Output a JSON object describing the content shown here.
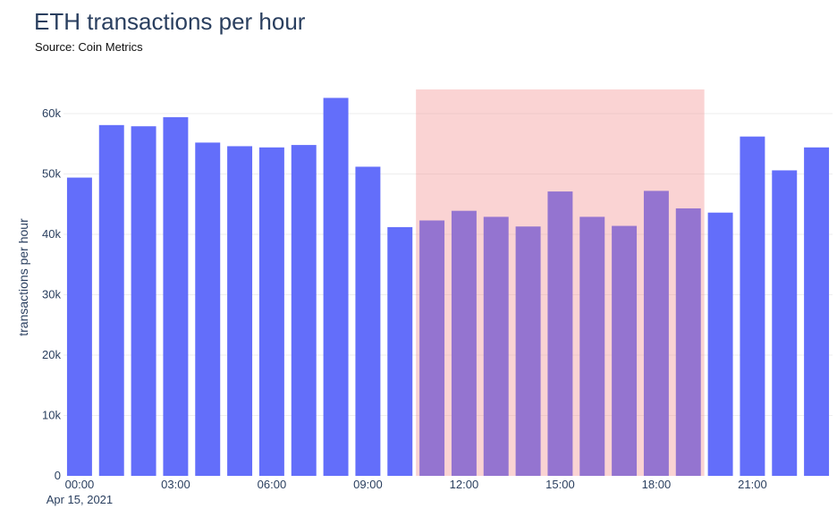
{
  "title": "ETH transactions per hour",
  "subtitle": "Source: Coin Metrics",
  "colors": {
    "bar": "#636efa",
    "highlight": "#f08080",
    "grid": "#eeeeee",
    "text": "#2a3f5f"
  },
  "chart_data": {
    "type": "bar",
    "title": "ETH transactions per hour",
    "subtitle": "Source: Coin Metrics",
    "xlabel": "",
    "ylabel": "transactions per hour",
    "ylim": [
      0,
      64000
    ],
    "grid": true,
    "categories": [
      "00:00",
      "01:00",
      "02:00",
      "03:00",
      "04:00",
      "05:00",
      "06:00",
      "07:00",
      "08:00",
      "09:00",
      "10:00",
      "11:00",
      "12:00",
      "13:00",
      "14:00",
      "15:00",
      "16:00",
      "17:00",
      "18:00",
      "19:00",
      "20:00",
      "21:00",
      "22:00",
      "23:00"
    ],
    "values": [
      49400,
      58100,
      57900,
      59400,
      55200,
      54600,
      54400,
      54800,
      62600,
      51200,
      41200,
      42300,
      43900,
      42900,
      41300,
      47100,
      42900,
      41400,
      47200,
      44300,
      43600,
      56200,
      50600,
      54400
    ],
    "x_tick_labels": [
      {
        "label": "00:00",
        "sub": "Apr 15, 2021"
      },
      {
        "label": "03:00",
        "sub": ""
      },
      {
        "label": "06:00",
        "sub": ""
      },
      {
        "label": "09:00",
        "sub": ""
      },
      {
        "label": "12:00",
        "sub": ""
      },
      {
        "label": "15:00",
        "sub": ""
      },
      {
        "label": "18:00",
        "sub": ""
      },
      {
        "label": "21:00",
        "sub": ""
      }
    ],
    "y_ticks": [
      {
        "value": 0,
        "label": "0"
      },
      {
        "value": 10000,
        "label": "10k"
      },
      {
        "value": 20000,
        "label": "20k"
      },
      {
        "value": 30000,
        "label": "30k"
      },
      {
        "value": 40000,
        "label": "40k"
      },
      {
        "value": 50000,
        "label": "50k"
      },
      {
        "value": 60000,
        "label": "60k"
      }
    ],
    "highlight_region": {
      "x_start": "10:30",
      "x_end": "19:30"
    }
  }
}
